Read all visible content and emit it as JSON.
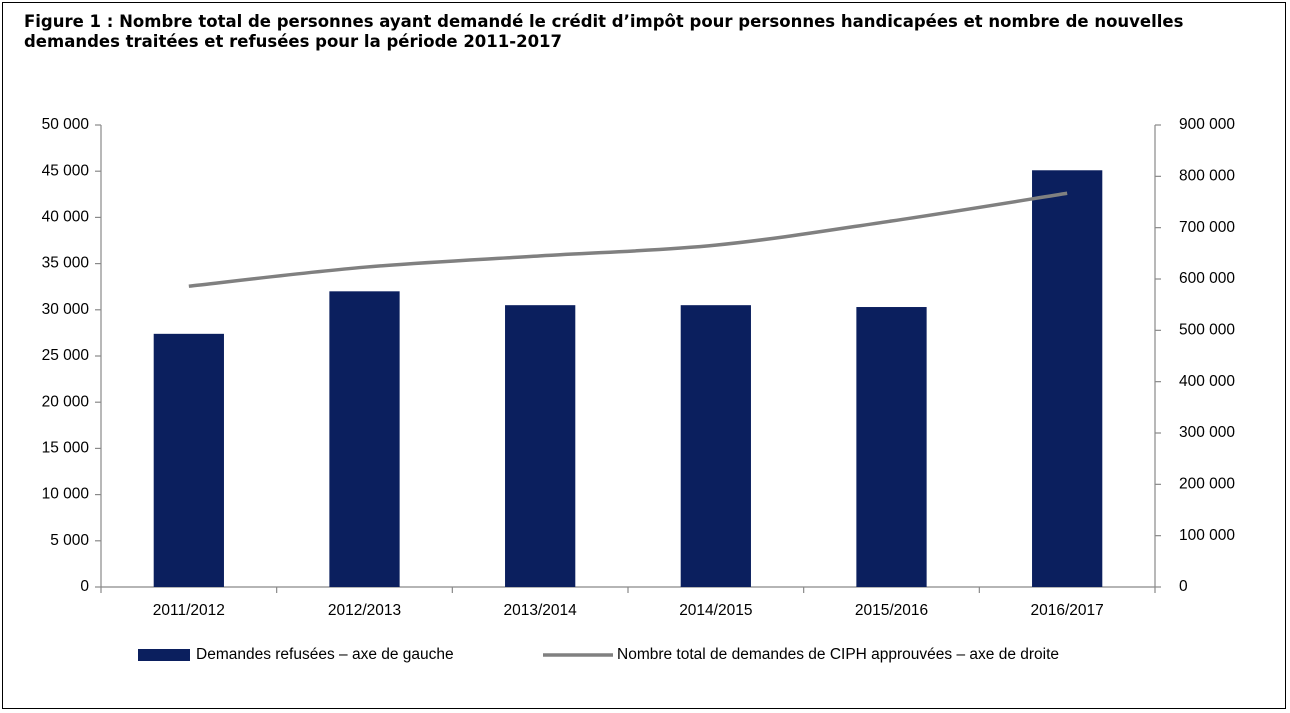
{
  "chart_data": {
    "type": "bar_line",
    "title": "Figure 1 : Nombre total de personnes ayant demandé le crédit d’impôt pour personnes handicapées et nombre de nouvelles demandes traitées et refusées pour la période 2011-2017",
    "categories": [
      "2011/2012",
      "2012/2013",
      "2013/2014",
      "2014/2015",
      "2015/2016",
      "2016/2017"
    ],
    "series": [
      {
        "name": "Demandes refusées – axe de gauche",
        "type": "bar",
        "color": "#0b1f5e",
        "values": [
          27400,
          32000,
          30500,
          30500,
          30300,
          45100
        ]
      },
      {
        "name": "Nombre total de demandes de CIPH approuvées – axe de droite",
        "type": "line",
        "axis": "y2",
        "color": "#808080",
        "values": [
          586000,
          623000,
          645000,
          666000,
          713000,
          767000
        ]
      }
    ],
    "ylim": [
      0,
      50000
    ],
    "yticks": [
      0,
      {
        "value": 5000,
        "label": "5 000"
      },
      {
        "value": 10000,
        "label": "10 000"
      },
      {
        "value": 15000,
        "label": "15 000"
      },
      {
        "value": 20000,
        "label": "20 000"
      },
      {
        "value": 25000,
        "label": "25 000"
      },
      {
        "value": 30000,
        "label": "30 000"
      },
      {
        "value": 35000,
        "label": "35 000"
      },
      {
        "value": 40000,
        "label": "40 000"
      },
      {
        "value": 45000,
        "label": "45 000"
      },
      {
        "value": 50000,
        "label": "50 000"
      }
    ],
    "y2lim": [
      0,
      900000
    ],
    "y2ticks": [
      0,
      {
        "value": 100000,
        "label": "100 000"
      },
      {
        "value": 200000,
        "label": "200 000"
      },
      {
        "value": 300000,
        "label": "300 000"
      },
      {
        "value": 400000,
        "label": "400 000"
      },
      {
        "value": 500000,
        "label": "500 000"
      },
      {
        "value": 600000,
        "label": "600 000"
      },
      {
        "value": 700000,
        "label": "700 000"
      },
      {
        "value": 800000,
        "label": "800 000"
      },
      {
        "value": 900000,
        "label": "900 000"
      }
    ],
    "legend": "bottom"
  }
}
